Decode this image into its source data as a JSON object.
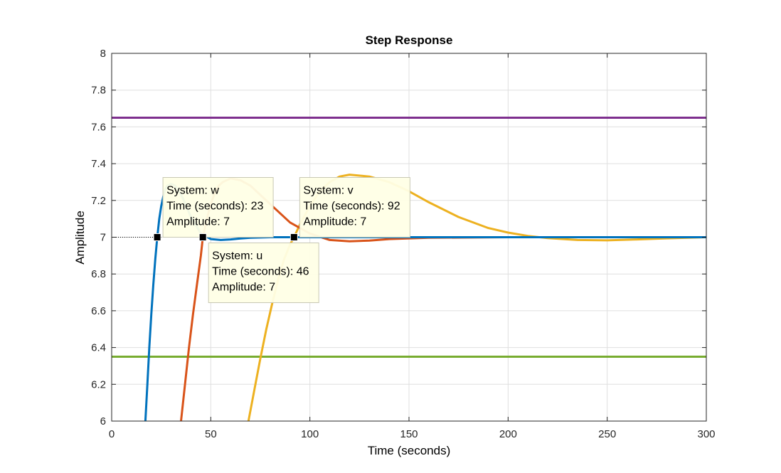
{
  "chart_data": {
    "type": "line",
    "title": "Step Response",
    "xlabel": "Time (seconds)",
    "ylabel": "Amplitude",
    "xlim": [
      0,
      300
    ],
    "ylim": [
      6,
      8
    ],
    "x_ticks": [
      "0",
      "50",
      "100",
      "150",
      "200",
      "250",
      "300"
    ],
    "y_ticks": [
      "6",
      "6.2",
      "6.4",
      "6.6",
      "6.8",
      "7",
      "7.2",
      "7.4",
      "7.6",
      "7.8",
      "8"
    ],
    "grid": true,
    "series": [
      {
        "name": "w",
        "color": "#0072BD",
        "x": [
          17,
          18,
          19,
          20,
          21,
          22,
          23,
          24,
          25,
          26,
          27,
          28,
          30,
          32,
          34,
          36,
          38,
          40,
          45,
          50,
          55,
          60,
          65,
          70,
          80,
          90,
          100,
          120,
          150,
          300
        ],
        "y": [
          6.0,
          6.2,
          6.4,
          6.58,
          6.74,
          6.88,
          7.0,
          7.1,
          7.17,
          7.22,
          7.26,
          7.28,
          7.29,
          7.28,
          7.25,
          7.21,
          7.16,
          7.11,
          7.02,
          6.99,
          6.985,
          6.988,
          6.993,
          6.997,
          7.0,
          7.0,
          7.0,
          7.0,
          7.0,
          7.0
        ]
      },
      {
        "name": "u",
        "color": "#D95319",
        "x": [
          35,
          37,
          39,
          41,
          43,
          45,
          46,
          48,
          50,
          52,
          54,
          56,
          60,
          65,
          70,
          75,
          80,
          90,
          100,
          110,
          120,
          130,
          140,
          160,
          200,
          300
        ],
        "y": [
          6.0,
          6.2,
          6.4,
          6.58,
          6.74,
          6.9,
          7.0,
          7.1,
          7.18,
          7.24,
          7.28,
          7.3,
          7.32,
          7.31,
          7.28,
          7.23,
          7.18,
          7.08,
          7.02,
          6.985,
          6.978,
          6.982,
          6.99,
          6.997,
          7.0,
          7.0
        ]
      },
      {
        "name": "v",
        "color": "#EDB120",
        "x": [
          69,
          72,
          75,
          78,
          81,
          84,
          87,
          90,
          92,
          95,
          100,
          105,
          110,
          115,
          120,
          130,
          140,
          150,
          160,
          175,
          190,
          200,
          210,
          220,
          235,
          250,
          265,
          280,
          300
        ],
        "y": [
          6.0,
          6.17,
          6.34,
          6.5,
          6.64,
          6.77,
          6.88,
          6.96,
          7.0,
          7.07,
          7.17,
          7.25,
          7.3,
          7.33,
          7.34,
          7.33,
          7.3,
          7.25,
          7.19,
          7.11,
          7.05,
          7.025,
          7.007,
          6.995,
          6.985,
          6.983,
          6.988,
          6.994,
          7.0
        ]
      },
      {
        "color": "#7E2F8E",
        "x": [
          0,
          300
        ],
        "y": [
          7.65,
          7.65
        ]
      },
      {
        "color": "#77AC30",
        "x": [
          0,
          300
        ],
        "y": [
          6.35,
          6.35
        ]
      }
    ],
    "reference_line": {
      "y": 7,
      "x": [
        0,
        92
      ],
      "style": "dotted"
    },
    "datatips": [
      {
        "series": "w",
        "x": 23,
        "y": 7,
        "lines": [
          "System: w",
          "Time (seconds): 23",
          "Amplitude: 7"
        ],
        "placement": "upper-right"
      },
      {
        "series": "u",
        "x": 46,
        "y": 7,
        "lines": [
          "System: u",
          "Time (seconds): 46",
          "Amplitude: 7"
        ],
        "placement": "lower-right"
      },
      {
        "series": "v",
        "x": 92,
        "y": 7,
        "lines": [
          "System: v",
          "Time (seconds): 92",
          "Amplitude: 7"
        ],
        "placement": "upper-right"
      }
    ]
  }
}
